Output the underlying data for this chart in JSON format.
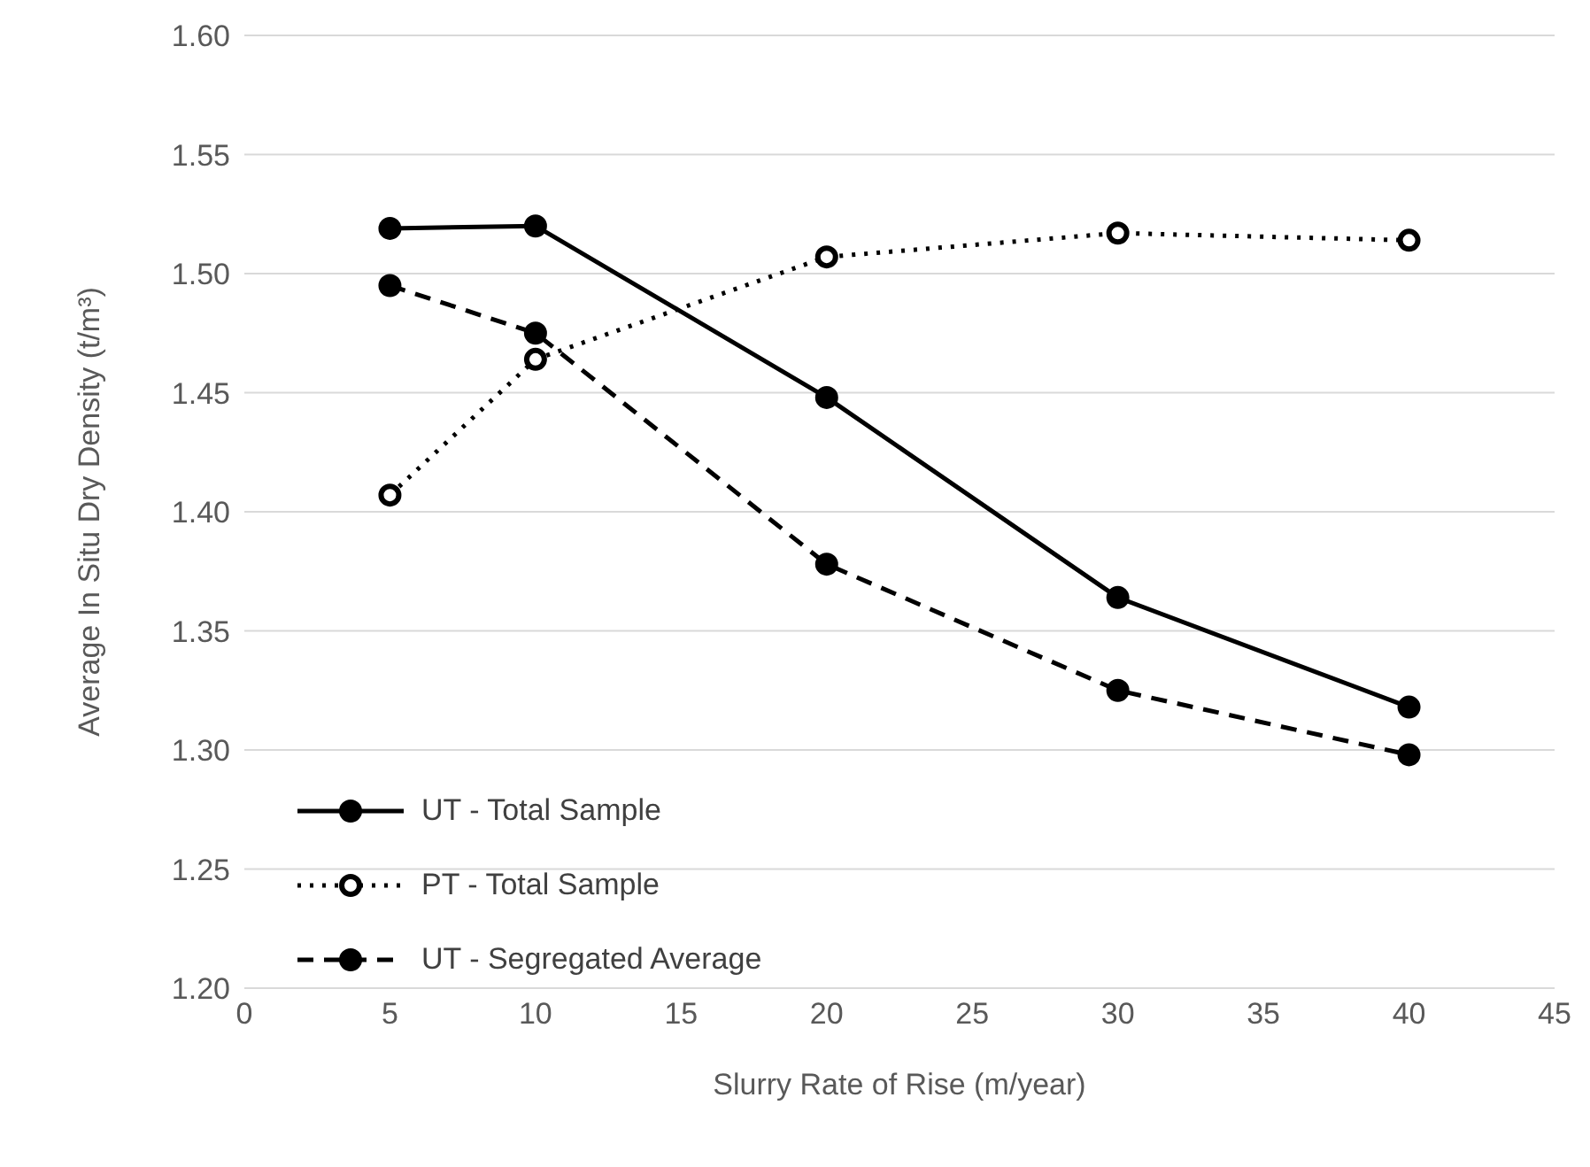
{
  "chart_data": {
    "type": "line",
    "xlabel": "Slurry Rate of Rise (m/year)",
    "ylabel": "Average In Situ Dry Density (t/m³)",
    "x": [
      5,
      10,
      20,
      30,
      40
    ],
    "series": [
      {
        "name": "UT - Total Sample",
        "color": "#000000",
        "values": [
          1.519,
          1.52,
          1.448,
          1.364,
          1.318
        ],
        "line_style": "solid",
        "marker": "circle"
      },
      {
        "name": "PT - Total Sample",
        "color": "#000000",
        "values": [
          1.407,
          1.464,
          1.507,
          1.517,
          1.514
        ],
        "line_style": "dotted",
        "marker": "circle-open"
      },
      {
        "name": "UT - Segregated Average",
        "color": "#000000",
        "values": [
          1.495,
          1.475,
          1.378,
          1.325,
          1.298
        ],
        "line_style": "dashed",
        "marker": "circle"
      }
    ],
    "xlim": [
      0,
      45
    ],
    "xticks": [
      0,
      5,
      10,
      15,
      20,
      25,
      30,
      35,
      40,
      45
    ],
    "ylim": [
      1.2,
      1.6
    ],
    "yticks": [
      {
        "value": 1.2,
        "label": "1.20"
      },
      {
        "value": 1.25,
        "label": "1.25"
      },
      {
        "value": 1.3,
        "label": "1.30"
      },
      {
        "value": 1.35,
        "label": "1.35"
      },
      {
        "value": 1.4,
        "label": "1.40"
      },
      {
        "value": 1.45,
        "label": "1.45"
      },
      {
        "value": 1.5,
        "label": "1.50"
      },
      {
        "value": 1.55,
        "label": "1.55"
      },
      {
        "value": 1.6,
        "label": "1.60"
      }
    ],
    "grid": "y",
    "legend": "bottom left"
  }
}
